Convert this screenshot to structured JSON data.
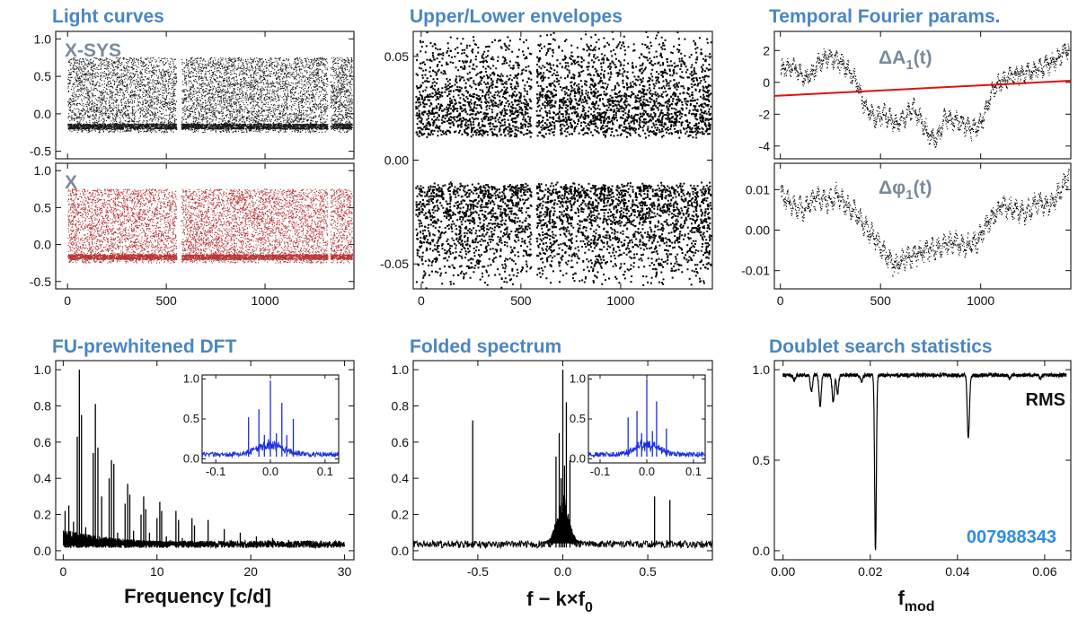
{
  "figure": {
    "kic_id": "007988343",
    "colors": {
      "title": "#4a86c0",
      "sys_dots": "#000000",
      "x_dots": "#b02020",
      "fit_line": "#e01010",
      "inset_line": "#1a2ee0",
      "kic": "#2e8de0",
      "label_gray": "#7a8a9a"
    }
  },
  "chart_data": [
    {
      "id": "lc_sys",
      "type": "scatter",
      "title": "Light curves",
      "annotation": "X-SYS",
      "xlim": [
        -60,
        1450
      ],
      "ylim": [
        -0.6,
        1.1
      ],
      "yticks": [
        -0.5,
        0.0,
        0.5,
        1.0
      ],
      "ytick_labels": [
        "-0.5",
        "0.0",
        "0.5",
        "1.0"
      ],
      "xticks": [
        0,
        500,
        1000
      ],
      "band": [
        -0.25,
        0.75
      ],
      "dense_level": -0.17,
      "gaps": [
        [
          550,
          575
        ],
        [
          1315,
          1330
        ]
      ]
    },
    {
      "id": "lc_x",
      "type": "scatter",
      "annotation": "X",
      "xlim": [
        -60,
        1450
      ],
      "ylim": [
        -0.6,
        1.1
      ],
      "yticks": [
        -0.5,
        0.0,
        0.5,
        1.0
      ],
      "ytick_labels": [
        "-0.5",
        "0.0",
        "0.5",
        "1.0"
      ],
      "xticks": [
        0,
        500,
        1000
      ],
      "xtick_labels": [
        "0",
        "500",
        "1000"
      ],
      "band": [
        -0.25,
        0.75
      ],
      "dense_level": -0.17,
      "gaps": [
        [
          550,
          575
        ],
        [
          1315,
          1330
        ]
      ]
    },
    {
      "id": "envelopes",
      "type": "scatter",
      "title": "Upper/Lower envelopes",
      "xlim": [
        -40,
        1460
      ],
      "ylim": [
        -0.062,
        0.062
      ],
      "yticks": [
        -0.05,
        0.0,
        0.05
      ],
      "ytick_labels": [
        "-0.05",
        "0.00",
        "0.05"
      ],
      "xticks": [
        0,
        500,
        1000
      ],
      "xtick_labels": [
        "0",
        "500",
        "1000"
      ],
      "upper": {
        "edge": 0.012,
        "top": 0.062
      },
      "lower": {
        "edge": -0.012,
        "bottom": -0.062
      }
    },
    {
      "id": "dA1",
      "type": "line",
      "title": "Temporal Fourier params.",
      "annotation": "ΔA",
      "annotation_sub": "1",
      "annotation_arg": "(t)",
      "xlim": [
        -30,
        1450
      ],
      "ylim": [
        -4.8,
        3.2
      ],
      "yticks": [
        -4,
        -2,
        0,
        2
      ],
      "ytick_labels": [
        "-4",
        "-2",
        "0",
        "2"
      ],
      "xticks": [
        0,
        500,
        1000
      ],
      "series": [
        {
          "name": "ΔA1",
          "x": [
            0,
            60,
            120,
            160,
            200,
            250,
            300,
            340,
            380,
            420,
            470,
            520,
            570,
            620,
            660,
            700,
            740,
            780,
            820,
            860,
            900,
            950,
            1000,
            1060,
            1120,
            1180,
            1240,
            1300,
            1350,
            1400,
            1440
          ],
          "y": [
            0.8,
            1.0,
            0.3,
            0.6,
            1.4,
            1.6,
            1.2,
            0.7,
            0.0,
            -1.6,
            -2.2,
            -2.0,
            -2.6,
            -2.2,
            -1.6,
            -2.4,
            -3.3,
            -3.6,
            -2.2,
            -2.4,
            -2.5,
            -3.0,
            -2.6,
            -0.4,
            0.2,
            0.5,
            0.6,
            0.9,
            1.2,
            1.7,
            2.2
          ]
        }
      ],
      "fit_line": {
        "x": [
          -30,
          1450
        ],
        "y": [
          -0.85,
          0.1
        ]
      }
    },
    {
      "id": "dphi1",
      "type": "line",
      "annotation": "Δφ",
      "annotation_sub": "1",
      "annotation_arg": "(t)",
      "xlim": [
        -30,
        1450
      ],
      "ylim": [
        -0.0145,
        0.0165
      ],
      "yticks": [
        -0.01,
        0.0,
        0.01
      ],
      "ytick_labels": [
        "-0.01",
        "0.00",
        "0.01"
      ],
      "xticks": [
        0,
        500,
        1000
      ],
      "xtick_labels": [
        "0",
        "500",
        "1000"
      ],
      "series": [
        {
          "name": "Δφ1",
          "x": [
            0,
            60,
            120,
            180,
            240,
            280,
            330,
            380,
            420,
            470,
            520,
            570,
            620,
            680,
            740,
            800,
            860,
            920,
            980,
            1020,
            1060,
            1100,
            1160,
            1220,
            1280,
            1340,
            1400,
            1440
          ],
          "y": [
            0.009,
            0.006,
            0.005,
            0.008,
            0.007,
            0.009,
            0.006,
            0.004,
            0.001,
            -0.002,
            -0.006,
            -0.009,
            -0.007,
            -0.006,
            -0.005,
            -0.004,
            -0.003,
            -0.004,
            -0.003,
            0.001,
            0.003,
            0.006,
            0.005,
            0.004,
            0.007,
            0.006,
            0.01,
            0.014
          ]
        }
      ]
    },
    {
      "id": "dft",
      "type": "line",
      "title": "FU-prewhitened DFT",
      "xlabel": "Frequency [c/d]",
      "xlim": [
        -0.8,
        31
      ],
      "ylim": [
        -0.05,
        1.05
      ],
      "yticks": [
        0.0,
        0.2,
        0.4,
        0.6,
        0.8,
        1.0
      ],
      "ytick_labels": [
        "0.0",
        "0.2",
        "0.4",
        "0.6",
        "0.8",
        "1.0"
      ],
      "xticks": [
        0,
        10,
        20,
        30
      ],
      "xtick_labels": [
        "0",
        "10",
        "20",
        "30"
      ],
      "noise_level": 0.045,
      "f0": 1.717,
      "peaks": [
        [
          0.2,
          0.22
        ],
        [
          0.6,
          0.25
        ],
        [
          1.72,
          1.0
        ],
        [
          3.43,
          0.81
        ],
        [
          5.15,
          0.5
        ],
        [
          6.87,
          0.37
        ],
        [
          8.58,
          0.3
        ],
        [
          10.3,
          0.27
        ],
        [
          12.02,
          0.22
        ],
        [
          13.73,
          0.18
        ],
        [
          15.45,
          0.17
        ],
        [
          17.17,
          0.12
        ],
        [
          18.88,
          0.1
        ],
        [
          20.6,
          0.08
        ],
        [
          22.32,
          0.07
        ],
        [
          24.03,
          0.06
        ],
        [
          1.5,
          0.63
        ],
        [
          3.2,
          0.54
        ],
        [
          4.9,
          0.4
        ],
        [
          6.6,
          0.26
        ],
        [
          8.3,
          0.2
        ],
        [
          10.0,
          0.18
        ],
        [
          1.95,
          0.75
        ],
        [
          3.7,
          0.57
        ],
        [
          5.4,
          0.48
        ],
        [
          7.1,
          0.31
        ],
        [
          8.8,
          0.23
        ],
        [
          10.5,
          0.22
        ],
        [
          12.3,
          0.17
        ],
        [
          14.0,
          0.14
        ],
        [
          2.4,
          0.13
        ],
        [
          4.1,
          0.3
        ],
        [
          5.8,
          0.1
        ],
        [
          7.5,
          0.11
        ],
        [
          9.2,
          0.1
        ],
        [
          11.0,
          0.08
        ],
        [
          12.7,
          0.07
        ],
        [
          14.3,
          0.05
        ],
        [
          1.1,
          0.16
        ]
      ],
      "inset": {
        "xlim": [
          -0.125,
          0.125
        ],
        "ylim": [
          -0.05,
          1.05
        ],
        "xticks": [
          -0.1,
          0.0,
          0.1
        ],
        "xtick_labels": [
          "-0.1",
          "0.0",
          "0.1"
        ],
        "yticks": [
          0.0,
          0.5,
          1.0
        ],
        "ytick_labels": [
          "0.0",
          "0.5",
          "1.0"
        ],
        "peaks": [
          [
            -0.04,
            0.52
          ],
          [
            -0.021,
            0.62
          ],
          [
            0.0,
            0.98
          ],
          [
            0.021,
            0.7
          ],
          [
            0.042,
            0.5
          ],
          [
            -0.011,
            0.3
          ],
          [
            0.011,
            0.32
          ],
          [
            0.03,
            0.3
          ]
        ]
      }
    },
    {
      "id": "folded",
      "type": "line",
      "title": "Folded spectrum",
      "xlabel": "f − k×f",
      "xlabel_sub": "0",
      "xlim": [
        -0.88,
        0.88
      ],
      "ylim": [
        -0.05,
        1.05
      ],
      "yticks": [
        0.0,
        0.2,
        0.4,
        0.6,
        0.8,
        1.0
      ],
      "ytick_labels": [
        "0.0",
        "0.2",
        "0.4",
        "0.6",
        "0.8",
        "1.0"
      ],
      "xticks": [
        -0.5,
        0.0,
        0.5
      ],
      "xtick_labels": [
        "-0.5",
        "0.0",
        "0.5"
      ],
      "noise_level": 0.045,
      "peaks": [
        [
          -0.53,
          0.72
        ],
        [
          -0.04,
          0.52
        ],
        [
          -0.021,
          0.65
        ],
        [
          0.0,
          1.0
        ],
        [
          0.021,
          0.82
        ],
        [
          0.042,
          0.5
        ],
        [
          0.54,
          0.3
        ],
        [
          0.63,
          0.28
        ],
        [
          -0.01,
          0.4
        ],
        [
          0.01,
          0.47
        ]
      ],
      "inset": {
        "xlim": [
          -0.125,
          0.125
        ],
        "ylim": [
          -0.05,
          1.05
        ],
        "xticks": [
          -0.1,
          0.0,
          0.1
        ],
        "xtick_labels": [
          "-0.1",
          "0.0",
          "0.1"
        ],
        "yticks": [
          0.0,
          0.5,
          1.0
        ],
        "ytick_labels": [
          "0.0",
          "0.5",
          "1.0"
        ],
        "peaks": [
          [
            -0.04,
            0.52
          ],
          [
            -0.021,
            0.6
          ],
          [
            0.0,
            1.0
          ],
          [
            0.021,
            0.72
          ],
          [
            0.042,
            0.38
          ],
          [
            -0.011,
            0.32
          ],
          [
            0.012,
            0.35
          ]
        ]
      }
    },
    {
      "id": "doublet",
      "type": "line",
      "title": "Doublet search statistics",
      "xlabel": "f",
      "xlabel_sub": "mod",
      "annotation": "RMS",
      "xlim": [
        -0.002,
        0.066
      ],
      "ylim": [
        -0.05,
        1.05
      ],
      "yticks": [
        0.0,
        0.5,
        1.0
      ],
      "ytick_labels": [
        "0.0",
        "0.5",
        "1.0"
      ],
      "xticks": [
        0.0,
        0.02,
        0.04,
        0.06
      ],
      "xtick_labels": [
        "0.00",
        "0.02",
        "0.04",
        "0.06"
      ],
      "baseline": 0.97,
      "dips": [
        [
          0.0025,
          0.94
        ],
        [
          0.0065,
          0.88
        ],
        [
          0.0085,
          0.8
        ],
        [
          0.0115,
          0.82
        ],
        [
          0.0125,
          0.87
        ],
        [
          0.018,
          0.93
        ],
        [
          0.0212,
          0.0
        ],
        [
          0.0425,
          0.62
        ],
        [
          0.052,
          0.95
        ],
        [
          0.059,
          0.95
        ]
      ]
    }
  ]
}
